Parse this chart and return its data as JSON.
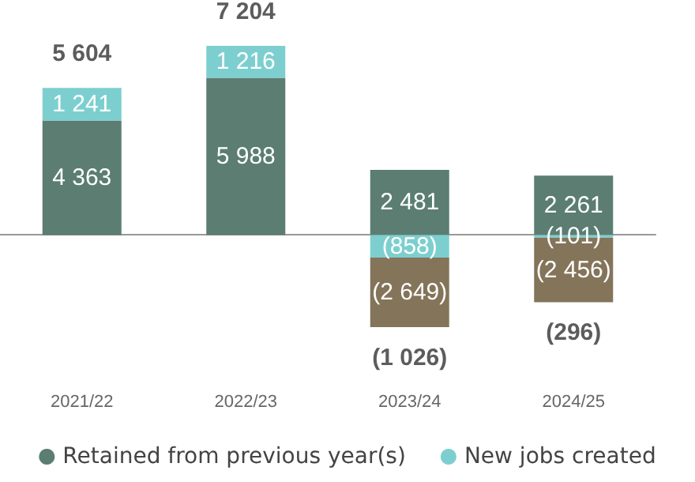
{
  "chart_data": {
    "type": "bar",
    "stacked": true,
    "categories": [
      "2021/22",
      "2022/23",
      "2023/24",
      "2024/25"
    ],
    "series": [
      {
        "name": "Retained from previous year(s)",
        "color": "#5b7d72",
        "values": [
          4363,
          5988,
          2481,
          2261
        ],
        "value_labels": [
          "4 363",
          "5 988",
          "2 481",
          "2 261"
        ]
      },
      {
        "name": "New jobs created",
        "color": "#7dcfcf",
        "values": [
          1241,
          1216,
          -858,
          -101
        ],
        "value_labels": [
          "1 241",
          "1 216",
          "(858)",
          "(101)"
        ]
      },
      {
        "color": "#84745a",
        "values": [
          null,
          null,
          -2649,
          -2456
        ],
        "value_labels": [
          null,
          null,
          "(2 649)",
          "(2 456)"
        ]
      }
    ],
    "totals": [
      "5 604",
      "7 204",
      "(1 026)",
      "(296)"
    ],
    "legend": "bottom"
  }
}
